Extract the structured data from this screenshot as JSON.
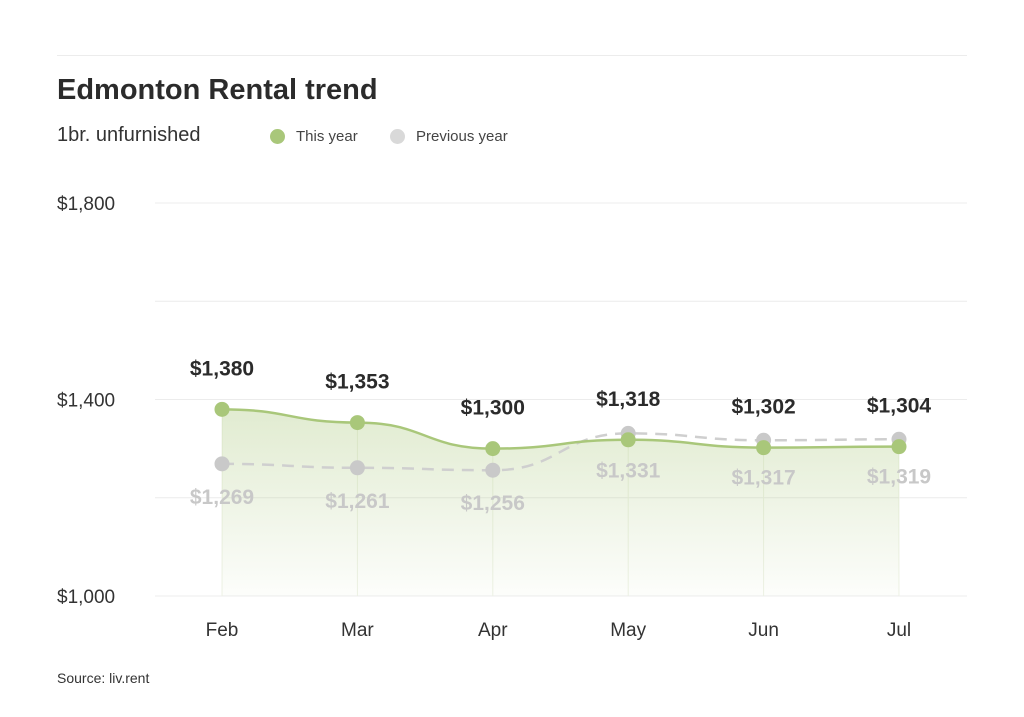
{
  "header": {
    "title": "Edmonton Rental trend",
    "subtitle": "1br. unfurnished"
  },
  "legend": {
    "this_year": "This year",
    "previous_year": "Previous year"
  },
  "footer": {
    "source": "Source: liv.rent"
  },
  "colors": {
    "this_year": "#a9c77a",
    "previous_year": "#cfcfcf",
    "grid": "#ececec"
  },
  "chart_data": {
    "type": "line",
    "title": "Edmonton Rental trend",
    "subtitle": "1br. unfurnished",
    "categories": [
      "Feb",
      "Mar",
      "Apr",
      "May",
      "Jun",
      "Jul"
    ],
    "series": [
      {
        "name": "This year",
        "values": [
          1380,
          1353,
          1300,
          1318,
          1302,
          1304
        ],
        "labels": [
          "$1,380",
          "$1,353",
          "$1,300",
          "$1,318",
          "$1,302",
          "$1,304"
        ],
        "line_style": "solid",
        "area_fill": true
      },
      {
        "name": "Previous year",
        "values": [
          1269,
          1261,
          1256,
          1331,
          1317,
          1319
        ],
        "labels": [
          "$1,269",
          "$1,261",
          "$1,256",
          "$1,331",
          "$1,317",
          "$1,319"
        ],
        "line_style": "dashed",
        "area_fill": false
      }
    ],
    "ylim": [
      1000,
      1800
    ],
    "y_ticks": [
      {
        "value": 1000,
        "label": "$1,000"
      },
      {
        "value": 1400,
        "label": "$1,400"
      },
      {
        "value": 1800,
        "label": "$1,800"
      }
    ],
    "gridlines": [
      1000,
      1200,
      1400,
      1600,
      1800
    ],
    "grid": true,
    "legend_position": "top-left"
  }
}
